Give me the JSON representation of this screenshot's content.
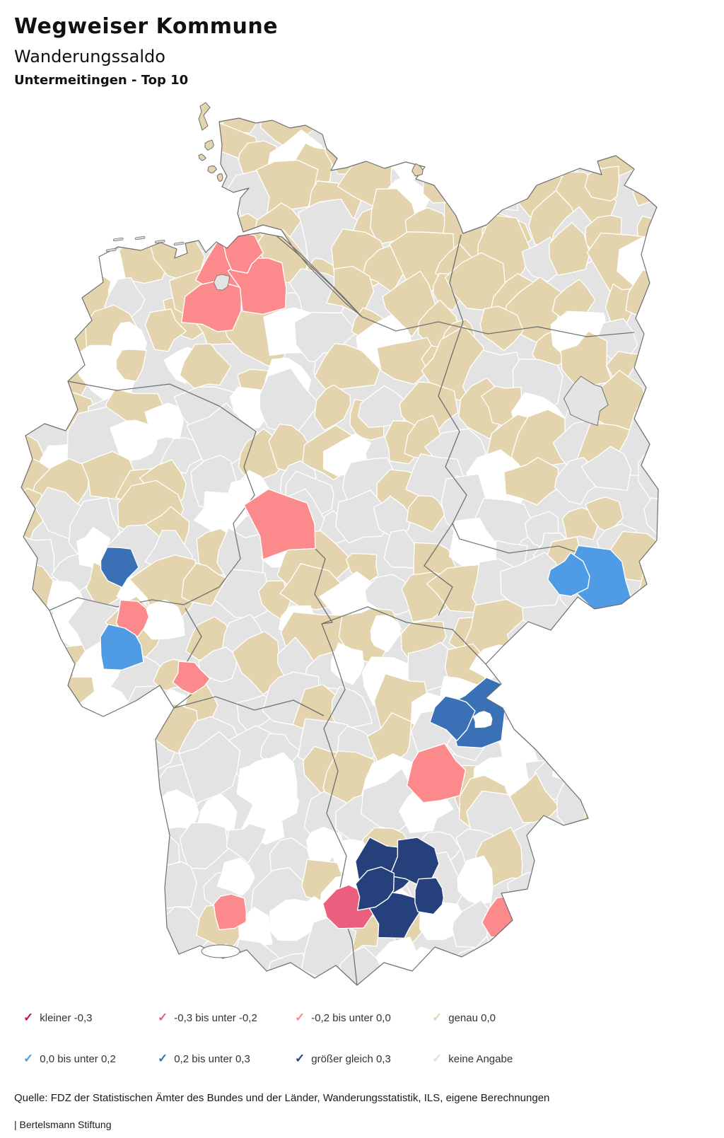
{
  "header": {
    "title": "Wegweiser Kommune",
    "subtitle": "Wanderungssaldo",
    "selection": "Untermeitingen - Top 10"
  },
  "legend": {
    "items": [
      {
        "key": "neg_large",
        "label": "kleiner -0,3",
        "color": "#c2134b",
        "row": 0,
        "col": 0
      },
      {
        "key": "neg_mid",
        "label": "-0,3 bis unter -0,2",
        "color": "#ea5f7e",
        "row": 0,
        "col": 1
      },
      {
        "key": "neg_small",
        "label": "-0,2 bis unter 0,0",
        "color": "#fc8a8c",
        "row": 0,
        "col": 2
      },
      {
        "key": "zero",
        "label": "genau 0,0",
        "color": "#e3d4ad",
        "row": 0,
        "col": 3
      },
      {
        "key": "pos_small",
        "label": "0,0 bis unter 0,2",
        "color": "#4f9ce5",
        "row": 1,
        "col": 0
      },
      {
        "key": "pos_mid",
        "label": "0,2 bis unter 0,3",
        "color": "#3a70b5",
        "row": 1,
        "col": 1
      },
      {
        "key": "pos_large",
        "label": "größer gleich 0,3",
        "color": "#25407a",
        "row": 1,
        "col": 2
      },
      {
        "key": "none",
        "label": "keine Angabe",
        "color": "#dedede",
        "row": 1,
        "col": 3
      }
    ]
  },
  "map": {
    "base_colors": {
      "district_no_data": "#e3e3e3",
      "district_zero": "#e3d4ad",
      "district_white": "#ffffff",
      "outline": "#6f6f6f",
      "state_border": "#454e58"
    },
    "regions": [
      {
        "name": "wesermarsch-bremerhaven",
        "category": "neg_small",
        "lobes": [
          [
            330,
            382,
            50
          ],
          [
            298,
            432,
            40
          ],
          [
            368,
            402,
            40
          ],
          [
            340,
            355,
            28
          ]
        ]
      },
      {
        "name": "kassel-area",
        "category": "neg_small",
        "lobes": [
          [
            400,
            740,
            48
          ]
        ]
      },
      {
        "name": "westerwald",
        "category": "neg_small",
        "lobes": [
          [
            188,
            872,
            27
          ]
        ]
      },
      {
        "name": "rheingau-taunus",
        "category": "neg_small",
        "lobes": [
          [
            270,
            957,
            22
          ]
        ]
      },
      {
        "name": "mittelfranken",
        "category": "neg_small",
        "lobes": [
          [
            616,
            1092,
            38
          ]
        ]
      },
      {
        "name": "southeast-bavaria",
        "category": "neg_small",
        "lobes": [
          [
            716,
            1298,
            34
          ],
          [
            728,
            1332,
            24
          ]
        ]
      },
      {
        "name": "upper-swabia",
        "category": "neg_small",
        "lobes": [
          [
            325,
            1288,
            30
          ]
        ]
      },
      {
        "name": "landsberg-west",
        "category": "neg_mid",
        "lobes": [
          [
            492,
            1286,
            38
          ]
        ]
      },
      {
        "name": "augsburg-home-cluster",
        "category": "pos_large",
        "lobes": [
          [
            545,
            1228,
            42
          ],
          [
            586,
            1220,
            34
          ],
          [
            560,
            1293,
            34
          ],
          [
            608,
            1268,
            27
          ],
          [
            530,
            1258,
            30
          ]
        ]
      },
      {
        "name": "mettmann",
        "category": "pos_mid",
        "lobes": [
          [
            162,
            798,
            28
          ]
        ]
      },
      {
        "name": "rhein-sieg",
        "category": "pos_small",
        "lobes": [
          [
            168,
            915,
            33
          ]
        ]
      },
      {
        "name": "bautzen-goerlitz",
        "category": "pos_small",
        "lobes": [
          [
            850,
            822,
            48
          ],
          [
            806,
            812,
            26
          ]
        ]
      },
      {
        "name": "regensburg-cham",
        "category": "pos_mid",
        "lobes": [
          [
            678,
            1013,
            48
          ],
          [
            640,
            1010,
            30
          ]
        ],
        "hole": [
          682,
          1016,
          13
        ]
      }
    ]
  },
  "footer": {
    "source": "Quelle: FDZ der Statistischen Ämter des Bundes und der Länder, Wanderungsstatistik, ILS, eigene Berechnungen",
    "attribution": "| Bertelsmann Stiftung"
  }
}
